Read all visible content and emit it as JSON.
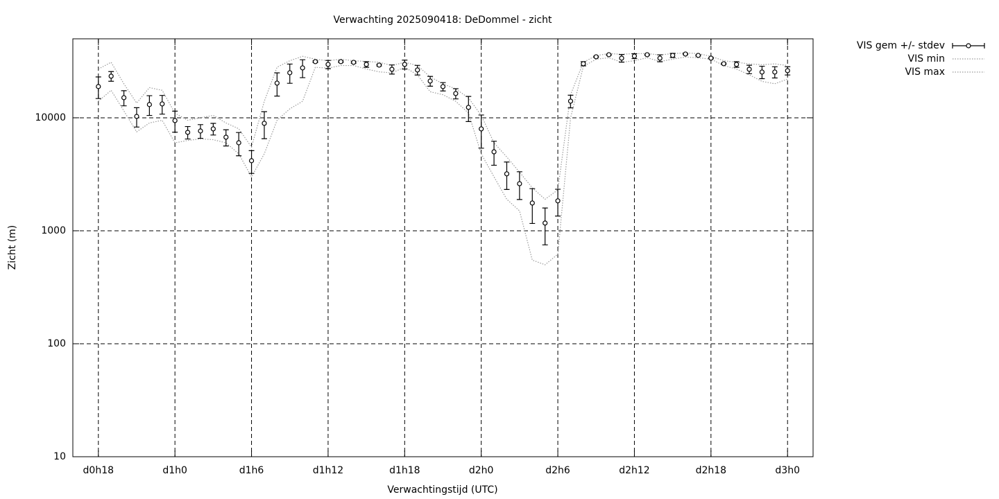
{
  "chart_data": {
    "type": "line",
    "title": "Verwachting 2025090418: DeDommel - zicht",
    "xlabel": "Verwachtingstijd (UTC)",
    "ylabel": "Zicht (m)",
    "x": [
      18,
      19,
      20,
      21,
      22,
      23,
      24,
      25,
      26,
      27,
      28,
      29,
      30,
      31,
      32,
      33,
      34,
      35,
      36,
      37,
      38,
      39,
      40,
      41,
      42,
      43,
      44,
      45,
      46,
      47,
      48,
      49,
      50,
      51,
      52,
      53,
      54,
      55,
      56,
      57,
      58,
      59,
      60,
      61,
      62,
      63,
      64,
      65,
      66,
      67,
      68,
      69,
      70,
      71,
      72
    ],
    "xlim": [
      16,
      74
    ],
    "xticks": [
      {
        "value": 18,
        "label": "d0h18"
      },
      {
        "value": 24,
        "label": "d1h0"
      },
      {
        "value": 30,
        "label": "d1h6"
      },
      {
        "value": 36,
        "label": "d1h12"
      },
      {
        "value": 42,
        "label": "d1h18"
      },
      {
        "value": 48,
        "label": "d2h0"
      },
      {
        "value": 54,
        "label": "d2h6"
      },
      {
        "value": 60,
        "label": "d2h12"
      },
      {
        "value": 66,
        "label": "d2h18"
      },
      {
        "value": 72,
        "label": "d3h0"
      }
    ],
    "ylim": [
      10,
      50000
    ],
    "yticks": [
      10,
      100,
      1000,
      10000
    ],
    "ylog": true,
    "grid": true,
    "legend": "outside-top-right",
    "series": [
      {
        "name": "VIS gem +/- stdev",
        "color": "#000000",
        "style": "errorbars",
        "values": [
          18900,
          23350,
          15060,
          10280,
          13090,
          13270,
          9450,
          7430,
          7640,
          7980,
          6730,
          6010,
          4170,
          8930,
          20270,
          25040,
          27650,
          31390,
          29680,
          31390,
          30960,
          29680,
          29250,
          26870,
          29680,
          26500,
          21140,
          18880,
          16400,
          12360,
          7980,
          5000,
          3190,
          2610,
          1760,
          1170,
          1840,
          14040,
          30100,
          34660,
          36160,
          33710,
          35160,
          36160,
          33710,
          35650,
          36670,
          35650,
          33710,
          30100,
          29680,
          26870,
          25400,
          25400,
          26130
        ],
        "errors": [
          4100,
          2300,
          2300,
          2000,
          2600,
          2500,
          2000,
          940,
          1060,
          940,
          1100,
          1400,
          950,
          2400,
          4700,
          4850,
          5000,
          500,
          2500,
          500,
          500,
          1700,
          500,
          2500,
          2700,
          2600,
          2100,
          1600,
          1700,
          3100,
          2600,
          1200,
          870,
          720,
          600,
          420,
          490,
          1800,
          1300,
          400,
          400,
          2600,
          1750,
          400,
          2400,
          1500,
          400,
          400,
          400,
          400,
          1700,
          2300,
          3200,
          2900,
          2200
        ]
      },
      {
        "name": "VIS min",
        "color": "#999999",
        "style": "dotted",
        "values": [
          14000,
          17500,
          11500,
          7500,
          9000,
          9500,
          6000,
          6300,
          6500,
          6400,
          6000,
          4800,
          3000,
          4800,
          9500,
          12000,
          14000,
          28000,
          27500,
          29000,
          29000,
          27000,
          25500,
          25000,
          28000,
          24000,
          17000,
          16000,
          14000,
          11000,
          4800,
          3000,
          1900,
          1500,
          550,
          500,
          620,
          10000,
          28500,
          33000,
          34000,
          31000,
          32000,
          34000,
          31500,
          33000,
          34500,
          34000,
          33000,
          29000,
          27000,
          24000,
          21000,
          20000,
          22000
        ]
      },
      {
        "name": "VIS max",
        "color": "#999999",
        "style": "dotted",
        "values": [
          27000,
          31000,
          20000,
          13500,
          18500,
          17500,
          11000,
          9500,
          10000,
          10500,
          9000,
          8000,
          5500,
          14000,
          28000,
          32000,
          35000,
          33000,
          32000,
          33000,
          32000,
          31500,
          31000,
          29000,
          31000,
          29000,
          23000,
          20000,
          18000,
          15000,
          10500,
          6000,
          4500,
          3300,
          2400,
          1900,
          2300,
          16000,
          31000,
          35500,
          37000,
          36500,
          37000,
          37000,
          36000,
          37000,
          37500,
          37000,
          35000,
          32000,
          31000,
          30000,
          29500,
          30000,
          29000
        ]
      }
    ]
  }
}
